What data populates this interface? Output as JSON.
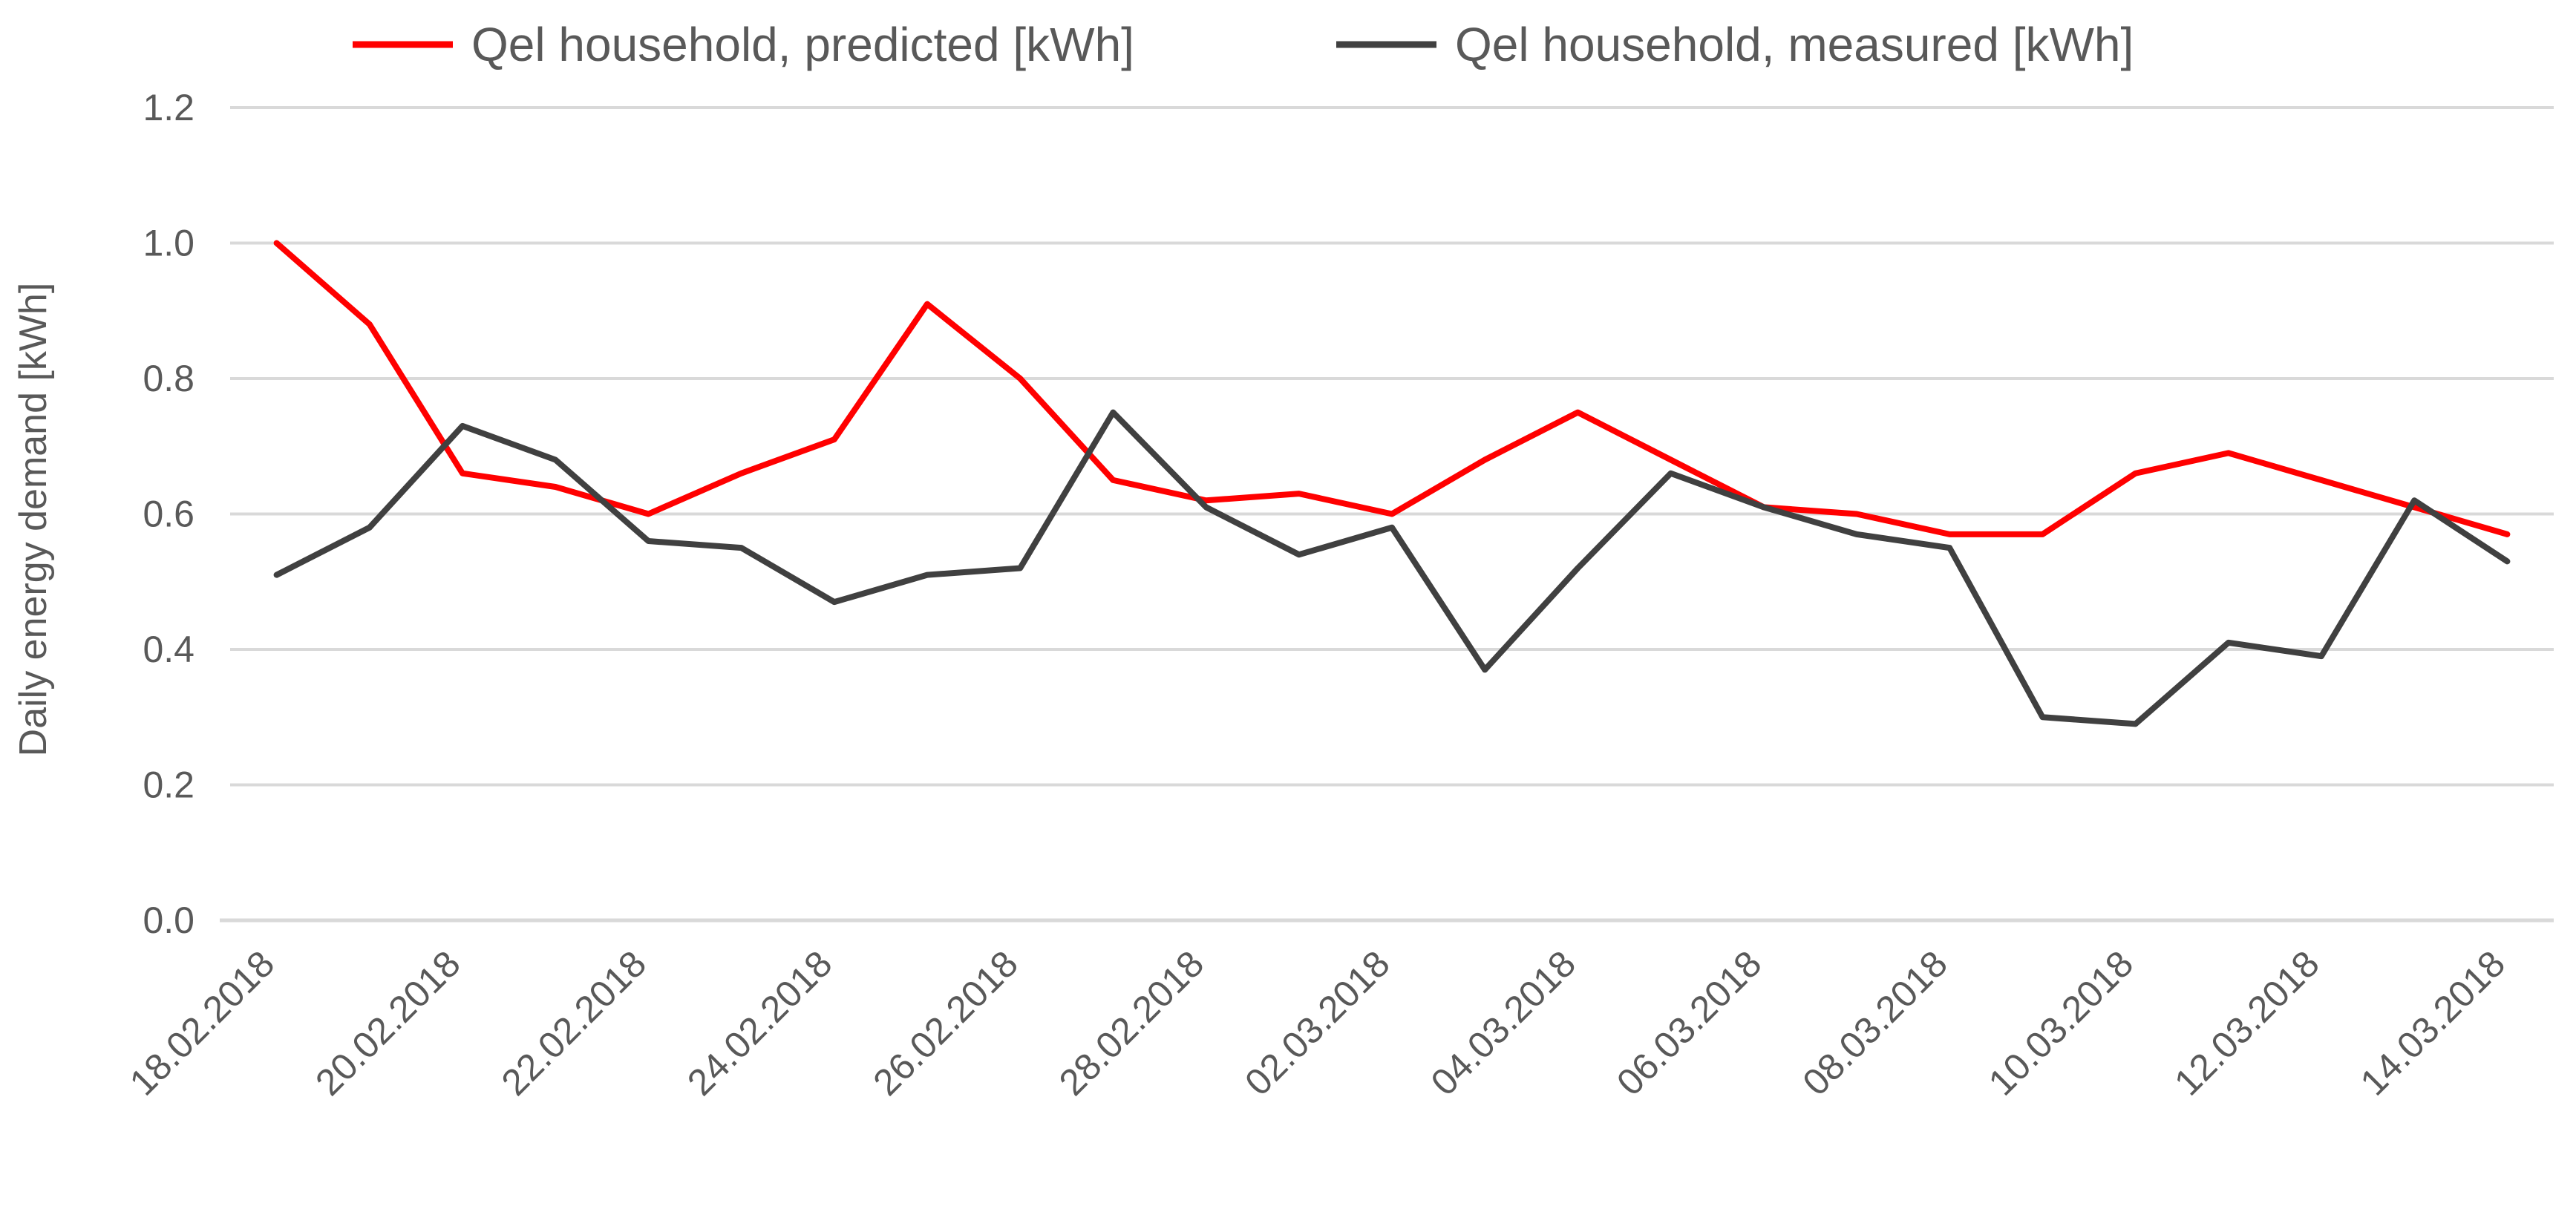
{
  "legend": {
    "predicted_label": "Qel household, predicted [kWh]",
    "measured_label": "Qel household, measured [kWh]"
  },
  "y_axis_title": "Daily energy demand [kWh]",
  "chart_data": {
    "type": "line",
    "title": "",
    "xlabel": "",
    "ylabel": "Daily energy demand [kWh]",
    "ylim": [
      0,
      1.2
    ],
    "ytick_step": 0.2,
    "ytick_labels": [
      "0.0",
      "0.2",
      "0.4",
      "0.6",
      "0.8",
      "1.0",
      "1.2"
    ],
    "grid": true,
    "legend_position": "top",
    "gridline_color": "#D9D9D9",
    "axis_line_color": "#D9D9D9",
    "text_color": "#595959",
    "x": [
      "18.02.2018",
      "19.02.2018",
      "20.02.2018",
      "21.02.2018",
      "22.02.2018",
      "23.02.2018",
      "24.02.2018",
      "25.02.2018",
      "26.02.2018",
      "27.02.2018",
      "28.02.2018",
      "01.03.2018",
      "02.03.2018",
      "03.03.2018",
      "04.03.2018",
      "05.03.2018",
      "06.03.2018",
      "07.03.2018",
      "08.03.2018",
      "09.03.2018",
      "10.03.2018",
      "11.03.2018",
      "12.03.2018",
      "13.03.2018",
      "14.03.2018"
    ],
    "xtick_every": 2,
    "xtick_labels": [
      "18.02.2018",
      "20.02.2018",
      "22.02.2018",
      "24.02.2018",
      "26.02.2018",
      "28.02.2018",
      "02.03.2018",
      "04.03.2018",
      "06.03.2018",
      "08.03.2018",
      "10.03.2018",
      "12.03.2018",
      "14.03.2018"
    ],
    "series": [
      {
        "name": "Qel household, predicted [kWh]",
        "color": "#FF0000",
        "values": [
          1.0,
          0.88,
          0.66,
          0.64,
          0.6,
          0.66,
          0.71,
          0.91,
          0.8,
          0.65,
          0.62,
          0.63,
          0.6,
          0.68,
          0.75,
          0.68,
          0.61,
          0.6,
          0.57,
          0.57,
          0.66,
          0.69,
          0.65,
          0.61,
          0.57
        ]
      },
      {
        "name": "Qel household, measured [kWh]",
        "color": "#404040",
        "values": [
          0.51,
          0.58,
          0.73,
          0.68,
          0.56,
          0.55,
          0.47,
          0.51,
          0.52,
          0.75,
          0.61,
          0.54,
          0.58,
          0.37,
          0.52,
          0.66,
          0.61,
          0.57,
          0.55,
          0.3,
          0.29,
          0.41,
          0.39,
          0.62,
          0.53
        ]
      }
    ]
  }
}
